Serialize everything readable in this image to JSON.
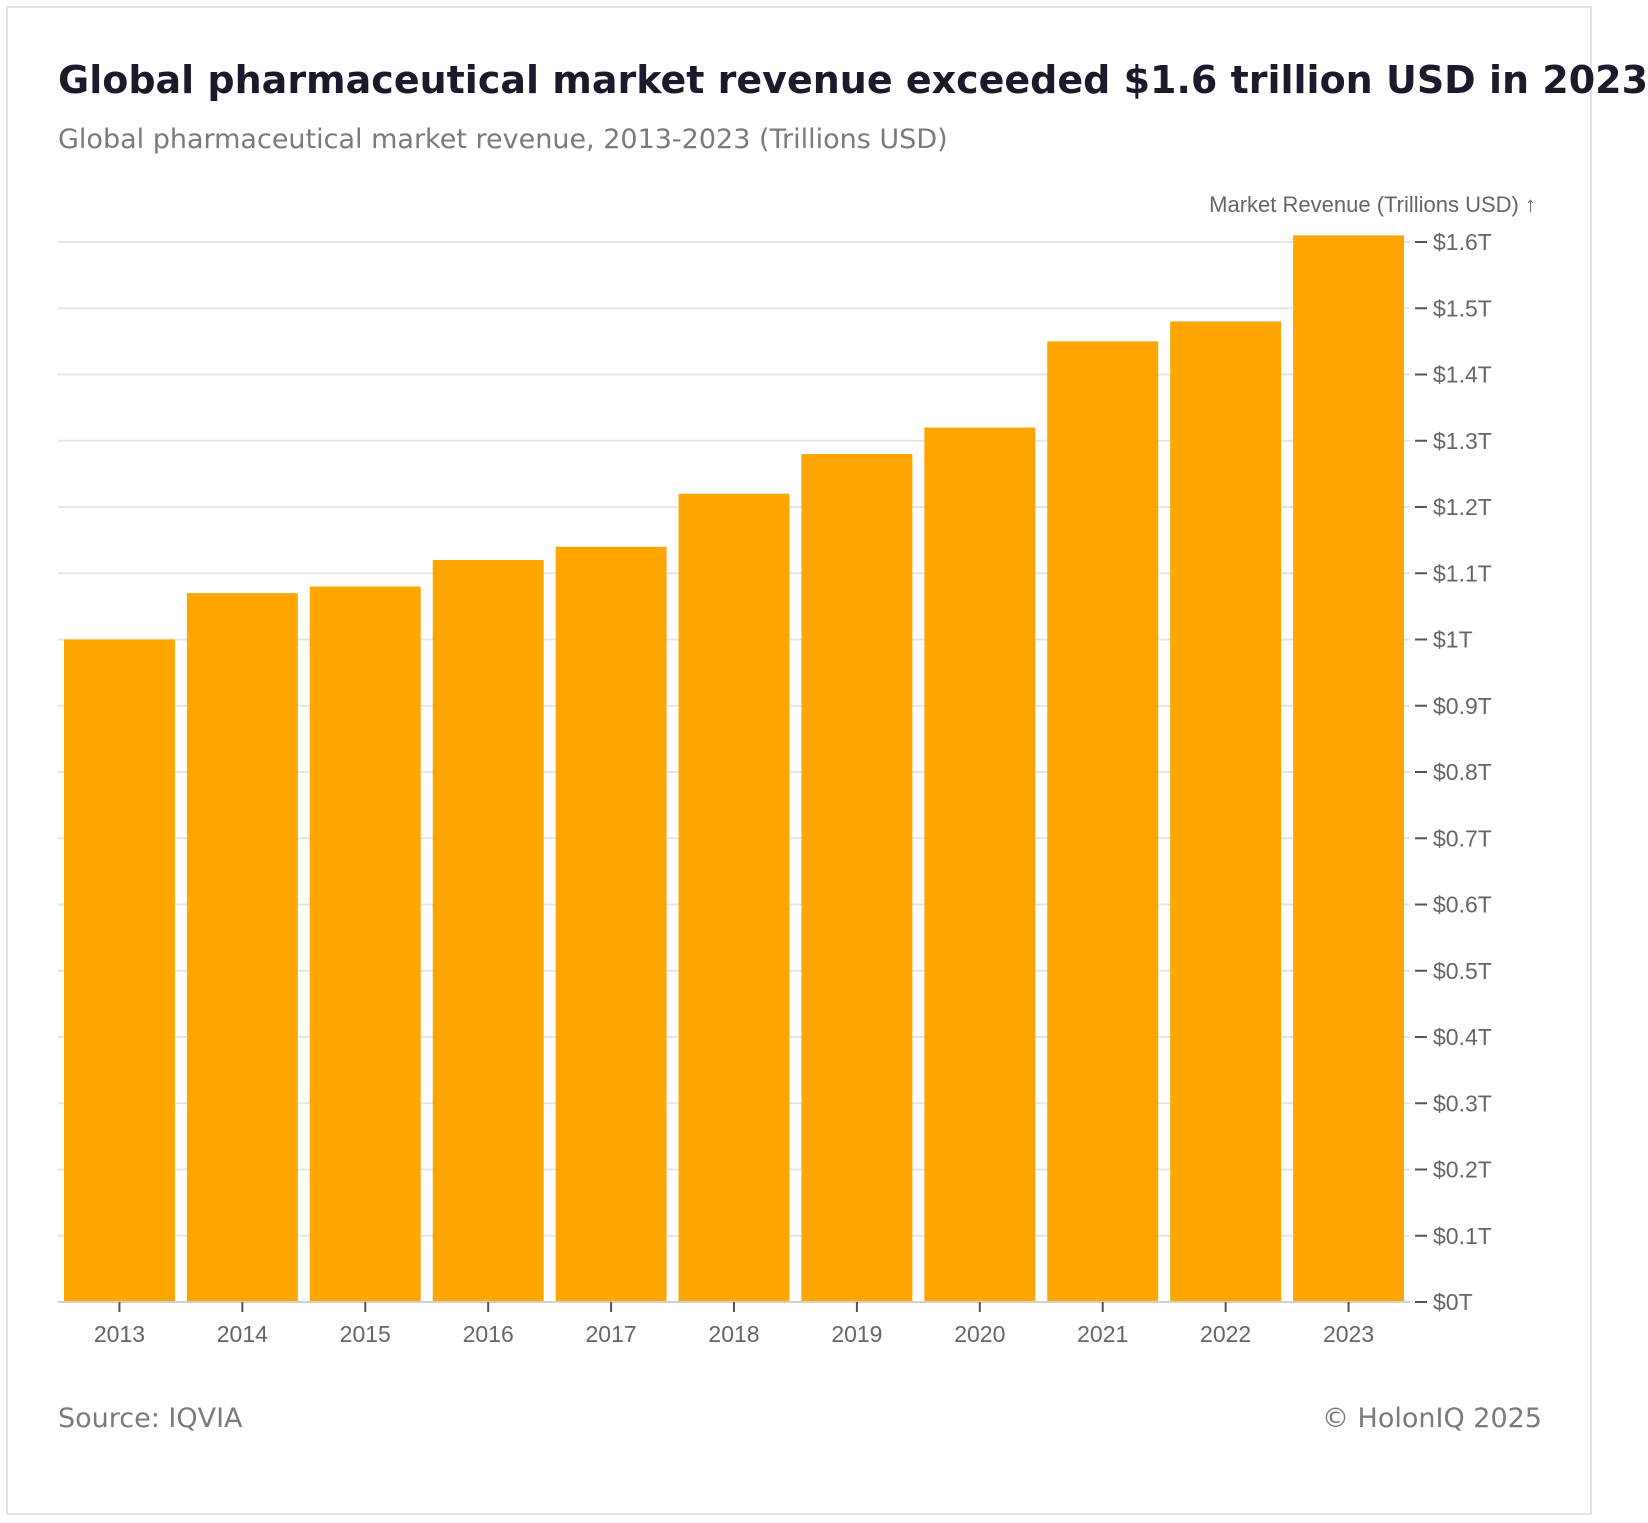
{
  "header": {
    "title": "Global pharmaceutical market revenue exceeded $1.6 trillion USD in 2023",
    "subtitle": "Global pharmaceutical market revenue, 2013-2023 (Trillions USD)"
  },
  "footer": {
    "source": "Source: IQVIA",
    "credit": "© HolonIQ 2025"
  },
  "chart_data": {
    "type": "bar",
    "title": "Global pharmaceutical market revenue exceeded $1.6 trillion USD in 2023",
    "subtitle": "Global pharmaceutical market revenue, 2013-2023 (Trillions USD)",
    "xlabel": "",
    "ylabel": "Market Revenue (Trillions USD) ↑",
    "categories": [
      "2013",
      "2014",
      "2015",
      "2016",
      "2017",
      "2018",
      "2019",
      "2020",
      "2021",
      "2022",
      "2023"
    ],
    "values": [
      1.0,
      1.07,
      1.08,
      1.12,
      1.14,
      1.22,
      1.28,
      1.32,
      1.45,
      1.48,
      1.61
    ],
    "ylim": [
      0,
      1.6
    ],
    "yticks": [
      0,
      0.1,
      0.2,
      0.3,
      0.4,
      0.5,
      0.6,
      0.7,
      0.8,
      0.9,
      1.0,
      1.1,
      1.2,
      1.3,
      1.4,
      1.5,
      1.6
    ],
    "ytick_labels": [
      "$0T",
      "$0.1T",
      "$0.2T",
      "$0.3T",
      "$0.4T",
      "$0.5T",
      "$0.6T",
      "$0.7T",
      "$0.8T",
      "$0.9T",
      "$1T",
      "$1.1T",
      "$1.2T",
      "$1.3T",
      "$1.4T",
      "$1.5T",
      "$1.6T"
    ],
    "y_axis_side": "right",
    "grid": true,
    "legend": "none",
    "bar_color": "#ffa600"
  }
}
